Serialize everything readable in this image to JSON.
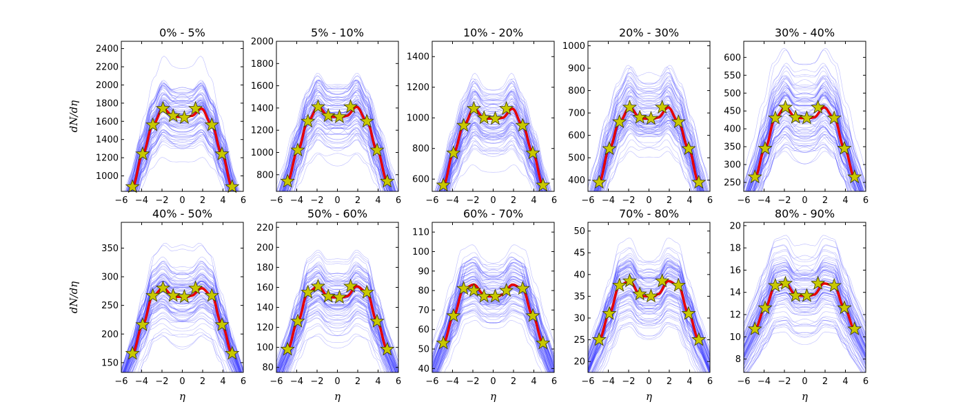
{
  "figure": {
    "ylabel": "dN/dη",
    "xlabel": "η",
    "x_ticks": [
      -6,
      -4,
      -2,
      0,
      2,
      4,
      6
    ],
    "xlim": [
      -6,
      6
    ],
    "colors": {
      "ensemble": "#3b3bff",
      "mean": "#e60000",
      "marker_fill": "#c8c800",
      "marker_stroke": "#3a3a00"
    }
  },
  "chart_data": [
    {
      "type": "line",
      "title": "0% - 5%",
      "ylim": [
        830,
        2480
      ],
      "y_ticks": [
        1000,
        1200,
        1400,
        1600,
        1800,
        2000,
        2200,
        2400
      ],
      "x": [
        -4.9,
        -3.9,
        -2.9,
        -1.9,
        -0.9,
        -0.5,
        0.5,
        0.9,
        1.9,
        2.9,
        3.9,
        4.9
      ],
      "y": [
        880,
        1240,
        1560,
        1740,
        1660,
        1650,
        1650,
        1660,
        1740,
        1560,
        1240,
        880
      ],
      "points": [
        [
          -4.9,
          880
        ],
        [
          -3.9,
          1240
        ],
        [
          -2.9,
          1560
        ],
        [
          -1.9,
          1740
        ],
        [
          -0.9,
          1660
        ],
        [
          0.2,
          1640
        ],
        [
          1.3,
          1740
        ],
        [
          2.9,
          1560
        ],
        [
          3.9,
          1240
        ],
        [
          4.9,
          880
        ]
      ]
    },
    {
      "type": "line",
      "title": "5% - 10%",
      "ylim": [
        650,
        2000
      ],
      "y_ticks": [
        800,
        1000,
        1200,
        1400,
        1600,
        1800,
        2000
      ],
      "x": [
        -4.9,
        -3.9,
        -2.9,
        -1.9,
        -0.9,
        -0.5,
        0.5,
        0.9,
        1.9,
        2.9,
        3.9,
        4.9
      ],
      "y": [
        740,
        1020,
        1280,
        1410,
        1330,
        1320,
        1320,
        1330,
        1410,
        1280,
        1020,
        740
      ],
      "points": [
        [
          -4.9,
          740
        ],
        [
          -3.9,
          1020
        ],
        [
          -2.9,
          1280
        ],
        [
          -1.9,
          1410
        ],
        [
          -0.9,
          1330
        ],
        [
          0.2,
          1320
        ],
        [
          1.3,
          1410
        ],
        [
          2.9,
          1280
        ],
        [
          3.9,
          1020
        ],
        [
          4.9,
          740
        ]
      ]
    },
    {
      "type": "line",
      "title": "10% - 20%",
      "ylim": [
        520,
        1500
      ],
      "y_ticks": [
        600,
        800,
        1000,
        1200,
        1400
      ],
      "x": [
        -4.9,
        -3.9,
        -2.9,
        -1.9,
        -0.9,
        -0.5,
        0.5,
        0.9,
        1.9,
        2.9,
        3.9,
        4.9
      ],
      "y": [
        560,
        770,
        950,
        1060,
        1000,
        995,
        995,
        1000,
        1060,
        950,
        770,
        560
      ],
      "points": [
        [
          -4.9,
          560
        ],
        [
          -3.9,
          770
        ],
        [
          -2.9,
          950
        ],
        [
          -1.9,
          1060
        ],
        [
          -0.9,
          1000
        ],
        [
          0.2,
          995
        ],
        [
          1.3,
          1060
        ],
        [
          2.9,
          950
        ],
        [
          3.9,
          770
        ],
        [
          4.9,
          560
        ]
      ]
    },
    {
      "type": "line",
      "title": "20% - 30%",
      "ylim": [
        350,
        1020
      ],
      "y_ticks": [
        400,
        500,
        600,
        700,
        800,
        900,
        1000
      ],
      "x": [
        -4.9,
        -3.9,
        -2.9,
        -1.9,
        -0.9,
        -0.5,
        0.5,
        0.9,
        1.9,
        2.9,
        3.9,
        4.9
      ],
      "y": [
        390,
        540,
        660,
        725,
        680,
        675,
        675,
        680,
        725,
        660,
        540,
        390
      ],
      "points": [
        [
          -4.9,
          390
        ],
        [
          -3.9,
          540
        ],
        [
          -2.9,
          660
        ],
        [
          -1.9,
          725
        ],
        [
          -0.9,
          680
        ],
        [
          0.2,
          675
        ],
        [
          1.3,
          725
        ],
        [
          2.9,
          660
        ],
        [
          3.9,
          540
        ],
        [
          4.9,
          390
        ]
      ]
    },
    {
      "type": "line",
      "title": "30% - 40%",
      "ylim": [
        225,
        645
      ],
      "y_ticks": [
        250,
        300,
        350,
        400,
        450,
        500,
        550,
        600
      ],
      "x": [
        -4.9,
        -3.9,
        -2.9,
        -1.9,
        -0.9,
        -0.5,
        0.5,
        0.9,
        1.9,
        2.9,
        3.9,
        4.9
      ],
      "y": [
        265,
        345,
        430,
        460,
        432,
        430,
        430,
        432,
        460,
        430,
        345,
        265
      ],
      "points": [
        [
          -4.9,
          265
        ],
        [
          -3.9,
          345
        ],
        [
          -2.9,
          430
        ],
        [
          -1.9,
          460
        ],
        [
          -0.9,
          432
        ],
        [
          0.2,
          430
        ],
        [
          1.3,
          460
        ],
        [
          2.9,
          430
        ],
        [
          3.9,
          345
        ],
        [
          4.9,
          265
        ]
      ]
    },
    {
      "type": "line",
      "title": "40% - 50%",
      "ylim": [
        133,
        395
      ],
      "y_ticks": [
        150,
        200,
        250,
        300,
        350
      ],
      "x": [
        -4.9,
        -3.9,
        -2.9,
        -1.9,
        -0.9,
        -0.5,
        0.5,
        0.9,
        1.9,
        2.9,
        3.9,
        4.9
      ],
      "y": [
        166,
        216,
        267,
        280,
        267,
        265,
        265,
        267,
        280,
        267,
        216,
        166
      ],
      "points": [
        [
          -4.9,
          166
        ],
        [
          -3.9,
          216
        ],
        [
          -2.9,
          267
        ],
        [
          -1.9,
          280
        ],
        [
          -0.9,
          267
        ],
        [
          0.2,
          265
        ],
        [
          1.3,
          280
        ],
        [
          2.9,
          267
        ],
        [
          3.9,
          216
        ],
        [
          4.9,
          166
        ]
      ]
    },
    {
      "type": "line",
      "title": "50% - 60%",
      "ylim": [
        75,
        225
      ],
      "y_ticks": [
        80,
        100,
        120,
        140,
        160,
        180,
        200,
        220
      ],
      "x": [
        -4.9,
        -3.9,
        -2.9,
        -1.9,
        -0.9,
        -0.5,
        0.5,
        0.9,
        1.9,
        2.9,
        3.9,
        4.9
      ],
      "y": [
        98,
        126,
        155,
        161,
        151,
        150,
        150,
        151,
        161,
        155,
        126,
        98
      ],
      "points": [
        [
          -4.9,
          98
        ],
        [
          -3.9,
          126
        ],
        [
          -2.9,
          155
        ],
        [
          -1.9,
          161
        ],
        [
          -0.9,
          151
        ],
        [
          0.2,
          150
        ],
        [
          1.3,
          161
        ],
        [
          2.9,
          155
        ],
        [
          3.9,
          126
        ],
        [
          4.9,
          98
        ]
      ]
    },
    {
      "type": "line",
      "title": "60% - 70%",
      "ylim": [
        38,
        115
      ],
      "y_ticks": [
        40,
        50,
        60,
        70,
        80,
        90,
        100,
        110
      ],
      "x": [
        -4.9,
        -3.9,
        -2.9,
        -1.9,
        -0.9,
        -0.5,
        0.5,
        0.9,
        1.9,
        2.9,
        3.9,
        4.9
      ],
      "y": [
        53,
        67,
        81,
        83,
        78,
        77,
        77,
        78,
        83,
        81,
        67,
        53
      ],
      "points": [
        [
          -4.9,
          53
        ],
        [
          -3.9,
          67
        ],
        [
          -2.9,
          81
        ],
        [
          -1.9,
          80
        ],
        [
          -0.9,
          77
        ],
        [
          0.2,
          77
        ],
        [
          1.3,
          80
        ],
        [
          2.9,
          81
        ],
        [
          3.9,
          67
        ],
        [
          4.9,
          53
        ]
      ]
    },
    {
      "type": "line",
      "title": "70% - 80%",
      "ylim": [
        17.5,
        52
      ],
      "y_ticks": [
        20,
        25,
        30,
        35,
        40,
        45,
        50
      ],
      "x": [
        -4.9,
        -3.9,
        -2.9,
        -1.9,
        -0.9,
        -0.5,
        0.5,
        0.9,
        1.9,
        2.9,
        3.9,
        4.9
      ],
      "y": [
        25,
        31,
        37.5,
        38.5,
        35.5,
        35,
        35,
        35.5,
        38.5,
        37.5,
        31,
        25
      ],
      "points": [
        [
          -4.9,
          25
        ],
        [
          -3.9,
          31
        ],
        [
          -2.9,
          37.5
        ],
        [
          -1.9,
          38.5
        ],
        [
          -0.9,
          35.5
        ],
        [
          0.2,
          35
        ],
        [
          1.3,
          38.5
        ],
        [
          2.9,
          37.5
        ],
        [
          3.9,
          31
        ],
        [
          4.9,
          25
        ]
      ]
    },
    {
      "type": "line",
      "title": "80% - 90%",
      "ylim": [
        6.8,
        20.3
      ],
      "y_ticks": [
        8,
        10,
        12,
        14,
        16,
        18,
        20
      ],
      "x": [
        -4.9,
        -3.9,
        -2.9,
        -1.9,
        -0.9,
        -0.5,
        0.5,
        0.9,
        1.9,
        2.9,
        3.9,
        4.9
      ],
      "y": [
        10.7,
        12.6,
        14.6,
        14.8,
        13.8,
        13.7,
        13.7,
        13.8,
        14.8,
        14.6,
        12.6,
        10.7
      ],
      "points": [
        [
          -4.9,
          10.7
        ],
        [
          -3.9,
          12.6
        ],
        [
          -2.9,
          14.6
        ],
        [
          -1.9,
          14.8
        ],
        [
          -0.9,
          13.7
        ],
        [
          0.2,
          13.7
        ],
        [
          1.3,
          14.8
        ],
        [
          2.9,
          14.6
        ],
        [
          3.9,
          12.6
        ],
        [
          4.9,
          10.7
        ]
      ]
    }
  ]
}
